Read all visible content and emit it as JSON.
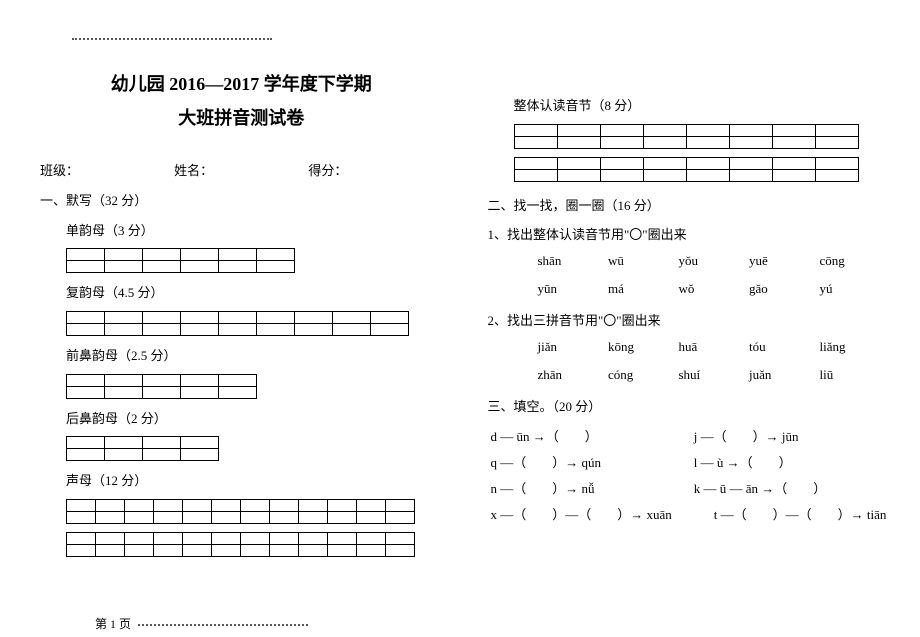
{
  "title1": "幼儿园 2016—2017 学年度下学期",
  "title2": "大班拼音测试卷",
  "info": {
    "class": "班级：",
    "name": "姓名：",
    "score": "得分："
  },
  "q1": {
    "head": "一、默写（32 分）",
    "s1": "单韵母（3 分）",
    "s2": "复韵母（4.5 分）",
    "s3": "前鼻韵母（2.5 分）",
    "s4": "后鼻韵母（2 分）",
    "s5": "声母（12 分）",
    "s6": "整体认读音节（8 分）"
  },
  "q2": {
    "head": "二、找一找，圈一圈（16 分）",
    "sub1": "1、找出整体认读音节用\"〇\"圈出来",
    "row1": [
      "shān",
      "wū",
      "yǒu",
      "yuē",
      "cōng"
    ],
    "row2": [
      "yūn",
      "má",
      "wǒ",
      "gǎo",
      "yú"
    ],
    "sub2": "2、找出三拼音节用\"〇\"圈出来",
    "row3": [
      "jiǎn",
      "kōng",
      "huā",
      "tóu",
      "liǎng"
    ],
    "row4": [
      "zhān",
      "cóng",
      "shuí",
      "juǎn",
      "liū"
    ]
  },
  "q3": {
    "head": "三、填空。（20 分）",
    "r1a": "d — ūn →（　　）",
    "r1b": "j —（　　）→ jūn",
    "r2a": "q —（　　）→ qún",
    "r2b": "l — ù →（　　）",
    "r3a": "n —（　　）→ nǚ",
    "r3b": "k — ū — ān →（　　）",
    "r4a": "x —（　　）—（　　）→ xuān",
    "r4b": "t —（　　）—（　　）→ tiān"
  },
  "footer": "第 1 页",
  "grids": {
    "g6": {
      "rows": 2,
      "cols": 6,
      "cw": 38
    },
    "g9": {
      "rows": 2,
      "cols": 9,
      "cw": 38
    },
    "g5": {
      "rows": 2,
      "cols": 5,
      "cw": 38
    },
    "g4": {
      "rows": 2,
      "cols": 4,
      "cw": 38
    },
    "g12": {
      "rows": 2,
      "cols": 12,
      "cw": 29
    },
    "g8": {
      "rows": 2,
      "cols": 8,
      "cw": 43
    }
  }
}
